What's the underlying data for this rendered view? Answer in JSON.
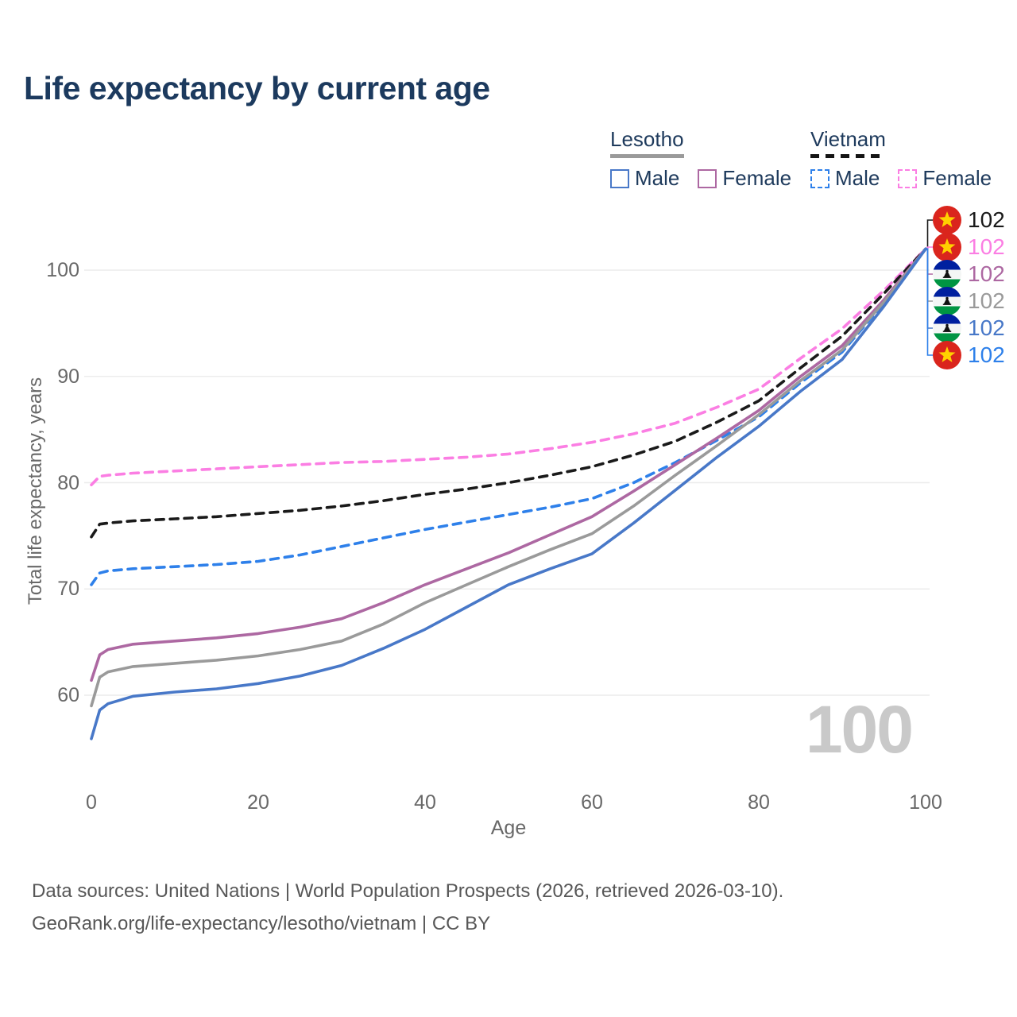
{
  "title": "Life expectancy by current age",
  "legend": {
    "groups": [
      {
        "name": "Lesotho",
        "line_style": "solid",
        "line_color": "#9a9a9a",
        "items": [
          {
            "label": "Male",
            "color": "#4878c8",
            "dashed": false
          },
          {
            "label": "Female",
            "color": "#ad68a2",
            "dashed": false
          }
        ]
      },
      {
        "name": "Vietnam",
        "line_style": "dashed",
        "line_color": "#141414",
        "items": [
          {
            "label": "Male",
            "color": "#2e80ea",
            "dashed": true
          },
          {
            "label": "Female",
            "color": "#fb7ee3",
            "dashed": true
          }
        ]
      }
    ]
  },
  "chart_data": {
    "type": "line",
    "title": "Life expectancy by current age",
    "xlabel": "Age",
    "ylabel": "Total life expectancy, years",
    "xlim": [
      0,
      100
    ],
    "ylim": [
      55,
      103
    ],
    "x_ticks": [
      0,
      20,
      40,
      60,
      80,
      100
    ],
    "y_ticks": [
      100,
      90,
      80,
      70,
      60
    ],
    "grid": "horizontal",
    "legend_position": "top-right",
    "x": [
      0,
      1,
      2,
      5,
      10,
      15,
      20,
      25,
      30,
      35,
      40,
      45,
      50,
      55,
      60,
      65,
      70,
      75,
      80,
      85,
      90,
      95,
      100
    ],
    "series": [
      {
        "name": "Vietnam Female",
        "country": "Vietnam",
        "sex": "Female",
        "color": "#fb7ee3",
        "dash": "dashed",
        "end_label": "102",
        "values": [
          79.8,
          80.6,
          80.7,
          80.9,
          81.1,
          81.3,
          81.5,
          81.7,
          81.9,
          82.0,
          82.2,
          82.4,
          82.7,
          83.2,
          83.8,
          84.6,
          85.6,
          87.1,
          88.8,
          91.7,
          94.5,
          98.1,
          102
        ]
      },
      {
        "name": "Vietnam Both sexes",
        "country": "Vietnam",
        "sex": "Both",
        "color": "#1a1a1a",
        "dash": "dashed",
        "end_label": "102",
        "values": [
          74.9,
          76.1,
          76.2,
          76.4,
          76.6,
          76.8,
          77.1,
          77.4,
          77.8,
          78.3,
          78.9,
          79.4,
          80.0,
          80.7,
          81.5,
          82.6,
          83.9,
          85.7,
          87.7,
          90.8,
          93.8,
          97.8,
          102
        ]
      },
      {
        "name": "Vietnam Male",
        "country": "Vietnam",
        "sex": "Male",
        "color": "#2e80ea",
        "dash": "dashed",
        "end_label": "102",
        "values": [
          70.4,
          71.5,
          71.7,
          71.9,
          72.1,
          72.3,
          72.6,
          73.2,
          74.0,
          74.8,
          75.6,
          76.3,
          77.0,
          77.7,
          78.5,
          80.0,
          81.9,
          84.0,
          86.2,
          89.4,
          92.3,
          96.9,
          102
        ]
      },
      {
        "name": "Lesotho Female",
        "country": "Lesotho",
        "sex": "Female",
        "color": "#ad68a2",
        "dash": "solid",
        "end_label": "102",
        "values": [
          61.4,
          63.8,
          64.3,
          64.8,
          65.1,
          65.4,
          65.8,
          66.4,
          67.2,
          68.7,
          70.4,
          71.9,
          73.4,
          75.1,
          76.8,
          79.2,
          81.7,
          84.2,
          86.8,
          90.0,
          92.9,
          97.2,
          102
        ]
      },
      {
        "name": "Lesotho Both sexes",
        "country": "Lesotho",
        "sex": "Both",
        "color": "#9a9a9a",
        "dash": "solid",
        "end_label": "102",
        "values": [
          59.0,
          61.7,
          62.2,
          62.7,
          63.0,
          63.3,
          63.7,
          64.3,
          65.1,
          66.7,
          68.7,
          70.4,
          72.1,
          73.7,
          75.2,
          77.8,
          80.7,
          83.5,
          86.4,
          89.6,
          92.5,
          97.0,
          102
        ]
      },
      {
        "name": "Lesotho Male",
        "country": "Lesotho",
        "sex": "Male",
        "color": "#4878c8",
        "dash": "solid",
        "end_label": "102",
        "values": [
          55.9,
          58.6,
          59.2,
          59.9,
          60.3,
          60.6,
          61.1,
          61.8,
          62.8,
          64.4,
          66.2,
          68.3,
          70.4,
          71.9,
          73.3,
          76.2,
          79.3,
          82.4,
          85.3,
          88.6,
          91.6,
          96.6,
          102
        ]
      }
    ]
  },
  "right_labels": [
    {
      "flag": "vietnam",
      "value": "102",
      "color": "#1a1a1a"
    },
    {
      "flag": "vietnam",
      "value": "102",
      "color": "#fb7ee3"
    },
    {
      "flag": "lesotho",
      "value": "102",
      "color": "#ad68a2"
    },
    {
      "flag": "lesotho",
      "value": "102",
      "color": "#9a9a9a"
    },
    {
      "flag": "lesotho",
      "value": "102",
      "color": "#4878c8"
    },
    {
      "flag": "vietnam",
      "value": "102",
      "color": "#2e80ea"
    }
  ],
  "watermark": "100",
  "footer": {
    "line1": "Data sources: United Nations | World Population Prospects (2026, retrieved 2026-03-10).",
    "line2": "GeoRank.org/life-expectancy/lesotho/vietnam | CC BY"
  }
}
